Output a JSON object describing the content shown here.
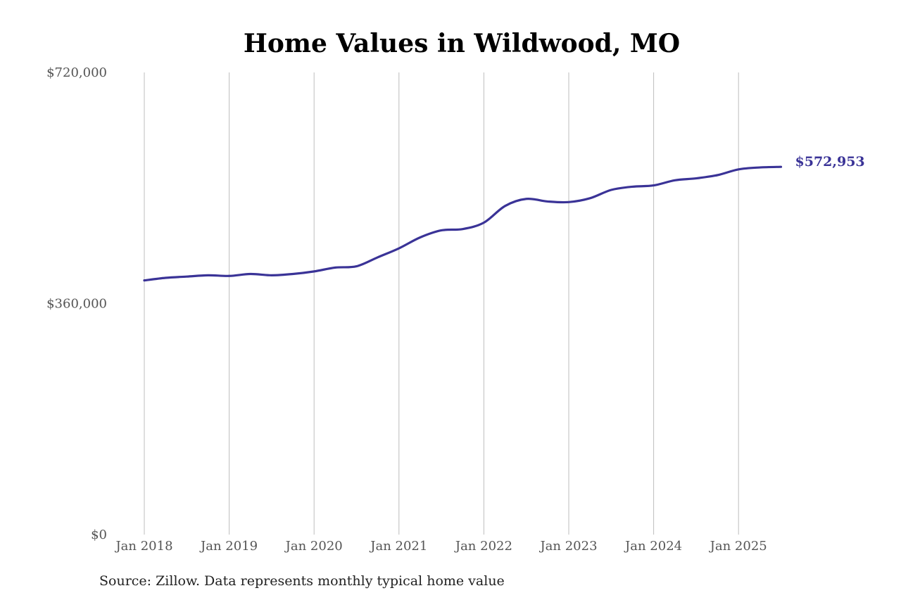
{
  "chart_data": {
    "type": "line",
    "title": "Home Values in Wildwood, MO",
    "xlabel": "",
    "ylabel": "",
    "ylim": [
      0,
      720000
    ],
    "xlim": [
      "2018-01",
      "2025-07"
    ],
    "y_ticks": [
      {
        "value": 0,
        "label": "$0"
      },
      {
        "value": 360000,
        "label": "$360,000"
      },
      {
        "value": 720000,
        "label": "$720,000"
      }
    ],
    "x_ticks": [
      {
        "value": "2018-01",
        "label": "Jan 2018"
      },
      {
        "value": "2019-01",
        "label": "Jan 2019"
      },
      {
        "value": "2020-01",
        "label": "Jan 2020"
      },
      {
        "value": "2021-01",
        "label": "Jan 2021"
      },
      {
        "value": "2022-01",
        "label": "Jan 2022"
      },
      {
        "value": "2023-01",
        "label": "Jan 2023"
      },
      {
        "value": "2024-01",
        "label": "Jan 2024"
      },
      {
        "value": "2025-01",
        "label": "Jan 2025"
      }
    ],
    "grid": {
      "vertical": true,
      "horizontal": false
    },
    "series": [
      {
        "color": "#3a3397",
        "end_label": "$572,953",
        "points": [
          {
            "x": "2018-01",
            "y": 396000
          },
          {
            "x": "2018-04",
            "y": 400000
          },
          {
            "x": "2018-07",
            "y": 402000
          },
          {
            "x": "2018-10",
            "y": 404000
          },
          {
            "x": "2019-01",
            "y": 403000
          },
          {
            "x": "2019-04",
            "y": 406000
          },
          {
            "x": "2019-07",
            "y": 404000
          },
          {
            "x": "2019-10",
            "y": 406000
          },
          {
            "x": "2020-01",
            "y": 410000
          },
          {
            "x": "2020-04",
            "y": 416000
          },
          {
            "x": "2020-07",
            "y": 418000
          },
          {
            "x": "2020-10",
            "y": 432000
          },
          {
            "x": "2021-01",
            "y": 446000
          },
          {
            "x": "2021-04",
            "y": 463000
          },
          {
            "x": "2021-07",
            "y": 474000
          },
          {
            "x": "2021-10",
            "y": 476000
          },
          {
            "x": "2022-01",
            "y": 486000
          },
          {
            "x": "2022-04",
            "y": 512000
          },
          {
            "x": "2022-07",
            "y": 523000
          },
          {
            "x": "2022-10",
            "y": 519000
          },
          {
            "x": "2023-01",
            "y": 518000
          },
          {
            "x": "2023-04",
            "y": 524000
          },
          {
            "x": "2023-07",
            "y": 537000
          },
          {
            "x": "2023-10",
            "y": 542000
          },
          {
            "x": "2024-01",
            "y": 544000
          },
          {
            "x": "2024-04",
            "y": 552000
          },
          {
            "x": "2024-07",
            "y": 555000
          },
          {
            "x": "2024-10",
            "y": 560000
          },
          {
            "x": "2025-01",
            "y": 569000
          },
          {
            "x": "2025-04",
            "y": 572000
          },
          {
            "x": "2025-07",
            "y": 572953
          }
        ]
      }
    ],
    "source_note": "Source: Zillow. Data represents monthly typical home value"
  }
}
